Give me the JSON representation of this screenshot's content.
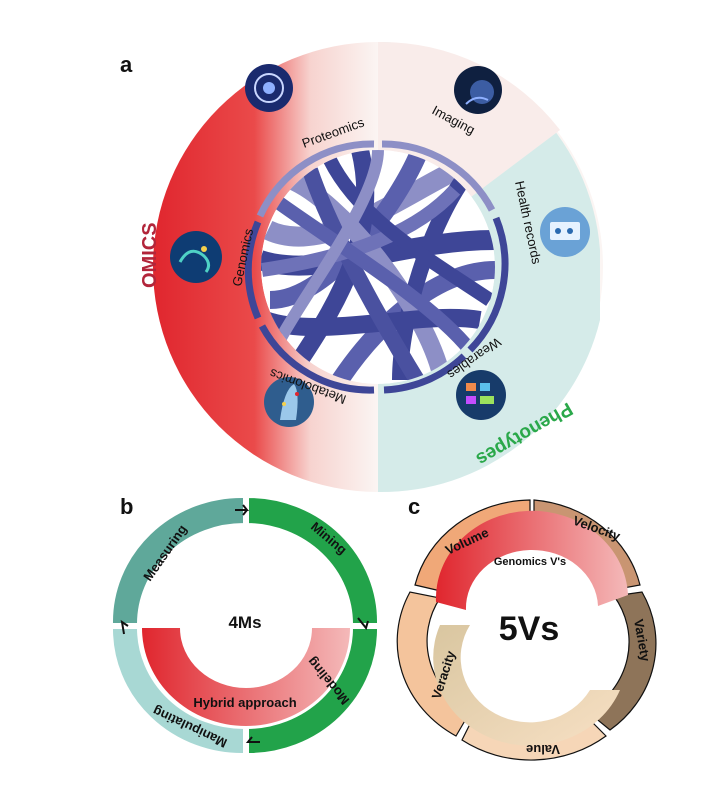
{
  "panel_a": {
    "letter": "a",
    "group_left": "OMICS",
    "group_right": "Phenotypes",
    "segments": [
      "Proteomics",
      "Imaging",
      "Health records",
      "Wearables",
      "Metabolomics",
      "Genomics"
    ],
    "colors": {
      "omics": "#e0262e",
      "phenotypes": "#cfe8e6",
      "ribbon": "#3e4697",
      "ribbon_light": "#8d8fc6",
      "omics_text": "#b2253a",
      "pheno_text": "#2aa84a"
    }
  },
  "panel_b": {
    "letter": "b",
    "center": "4Ms",
    "segments": [
      "Measuring",
      "Mining",
      "Modeling",
      "Manipulating"
    ],
    "inner_label": "Hybrid approach",
    "colors": {
      "measuring": "#5fa89a",
      "mining": "#22a34a",
      "modeling": "#22a34a",
      "manipulating": "#a8d8d4",
      "hybrid": "#e0262e"
    }
  },
  "panel_c": {
    "letter": "c",
    "center": "5Vs",
    "segments": [
      "Volume",
      "Velocity",
      "Variety",
      "Value",
      "Veracity"
    ],
    "inner_label": "Genomics V's",
    "colors": {
      "volume": "#f0a878",
      "velocity": "#c99572",
      "variety": "#8e7459",
      "value": "#f6d6b7",
      "veracity": "#f4c49c",
      "genomics": "#e0262e"
    }
  }
}
